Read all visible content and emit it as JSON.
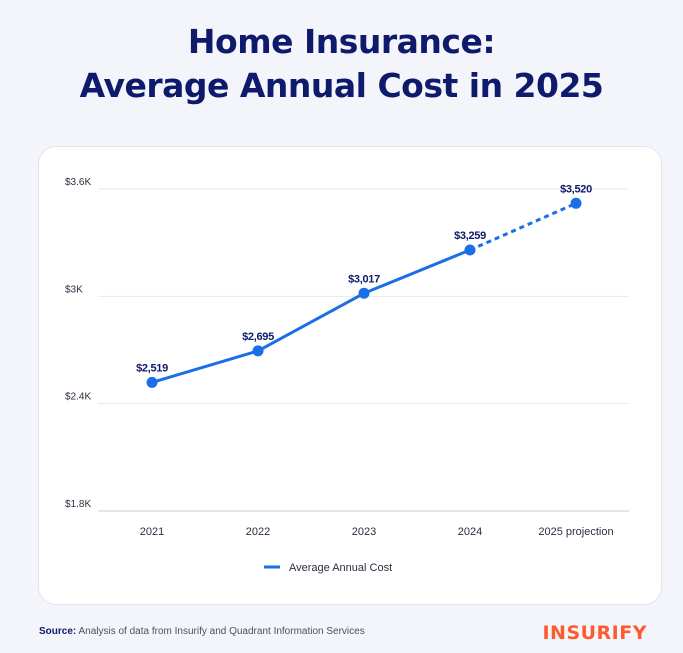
{
  "title": {
    "line1": "Home Insurance:",
    "line2": "Average Annual Cost in 2025"
  },
  "footer": {
    "source_label": "Source:",
    "source_text": "Analysis of data from Insurify and Quadrant Information Services"
  },
  "brand": {
    "logo_text": "INSURIFY",
    "color": "#ff5a2e"
  },
  "colors": {
    "title": "#0e1a6b",
    "line": "#1a6ee6",
    "label": "#0e1a6b"
  },
  "chart_data": {
    "type": "line",
    "categories": [
      "2021",
      "2022",
      "2023",
      "2024",
      "2025 projection"
    ],
    "series": [
      {
        "name": "Average Annual Cost",
        "values": [
          2519,
          2695,
          3017,
          3259,
          3520
        ],
        "data_labels": [
          "$2,519",
          "$2,695",
          "$3,017",
          "$3,259",
          "$3,520"
        ],
        "projected_from_index": 3
      }
    ],
    "ylim": [
      1800,
      3600
    ],
    "yticks": [
      1800,
      2400,
      3000,
      3600
    ],
    "ytick_labels": [
      "$1.8K",
      "$2.4K",
      "$3K",
      "$3.6K"
    ],
    "xlabel": "",
    "ylabel": "",
    "grid": true,
    "legend": "bottom-center"
  }
}
